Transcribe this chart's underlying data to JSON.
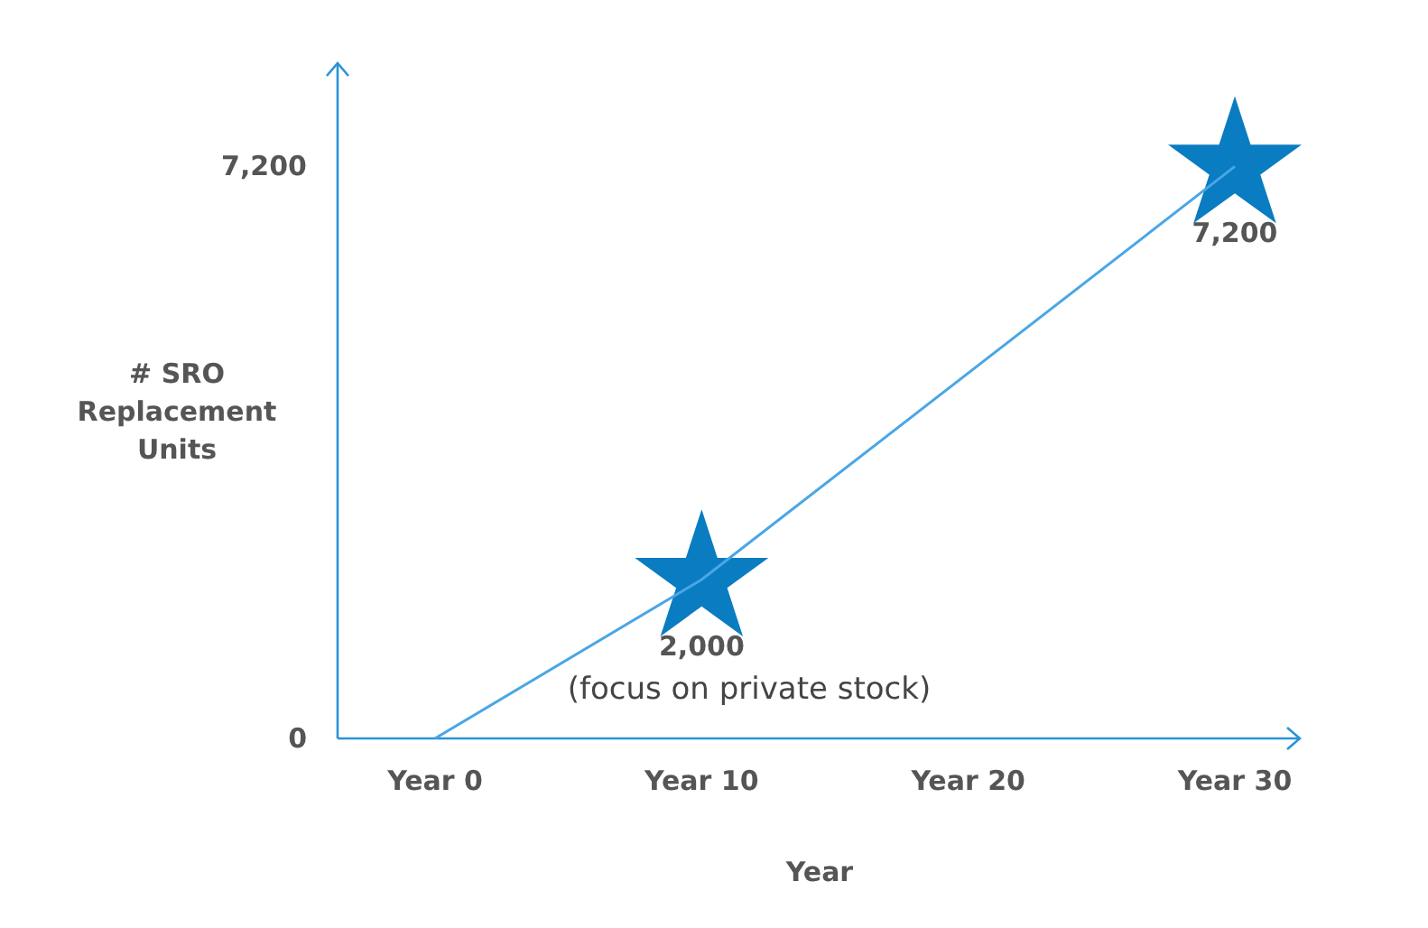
{
  "chart_data": {
    "type": "line",
    "xlabel": "Year",
    "ylabel": "# SRO Replacement Units",
    "categories": [
      "Year 0",
      "Year 10",
      "Year 20",
      "Year 30"
    ],
    "ylim": [
      0,
      8500
    ],
    "yticks": [
      {
        "value": 0,
        "label": "0"
      },
      {
        "value": 7200,
        "label": "7,200"
      }
    ],
    "grid": false,
    "series": [
      {
        "type": "scatter",
        "color": "#0a7cc1",
        "values": [
          null,
          2000,
          null,
          7200
        ],
        "marker": "star",
        "value_labels": [
          null,
          "2,000",
          null,
          "7,200"
        ]
      },
      {
        "color": "#4aa6e6",
        "values": [
          0,
          2000,
          null,
          7200
        ],
        "marker": "none",
        "line_style": "solid"
      }
    ],
    "annotations": [
      "(focus on private stock)"
    ]
  }
}
